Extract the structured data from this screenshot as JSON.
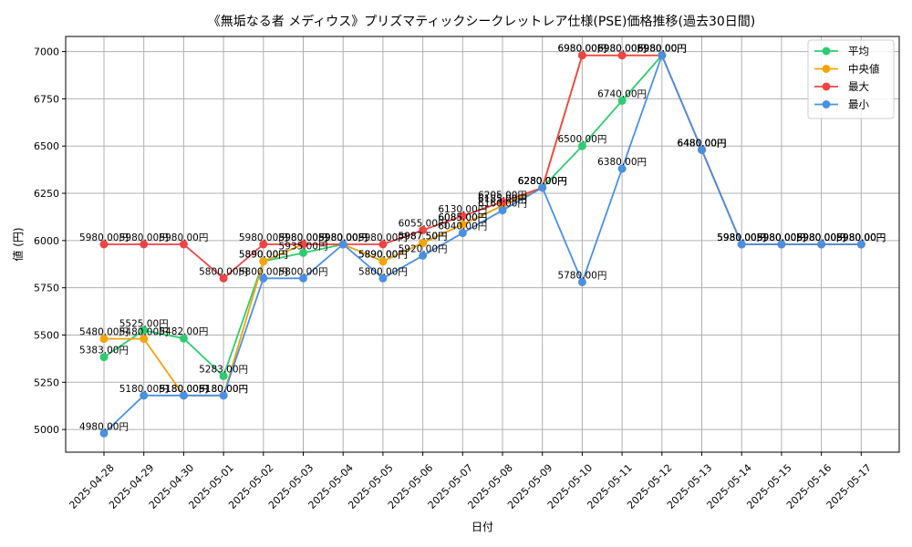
{
  "chart_data": {
    "type": "line",
    "title": "《無垢なる者 メディウス》プリズマティックシークレットレア仕様(PSE)価格推移(過去30日間)",
    "xlabel": "日付",
    "ylabel": "値 (円)",
    "ylim": [
      4880,
      7080
    ],
    "yticks": [
      5000,
      5250,
      5500,
      5750,
      6000,
      6250,
      6500,
      6750,
      7000
    ],
    "grid": true,
    "legend_position": "top-right",
    "categories": [
      "2025-04-28",
      "2025-04-29",
      "2025-04-30",
      "2025-05-01",
      "2025-05-02",
      "2025-05-03",
      "2025-05-04",
      "2025-05-05",
      "2025-05-06",
      "2025-05-07",
      "2025-05-08",
      "2025-05-09",
      "2025-05-10",
      "2025-05-11",
      "2025-05-12",
      "2025-05-13",
      "2025-05-14",
      "2025-05-15",
      "2025-05-16",
      "2025-05-17"
    ],
    "series": [
      {
        "name": "平均",
        "color": "#2ecc71",
        "values": [
          5383,
          5525,
          5482,
          5283,
          5890,
          5935,
          5980,
          5890,
          5987.5,
          6085,
          6185,
          6280,
          6500,
          6740,
          6980,
          6480,
          5980,
          5980,
          5980,
          5980
        ],
        "labels": [
          "5383.00円",
          "5525.00円",
          "5482.00円",
          "5283.00円",
          "5890.00円",
          "5935.00円",
          "5980.00円",
          "5890.00円",
          "5987.50円",
          "6085.00円",
          "6185.00円",
          "6280.00円",
          "6500.00円",
          "6740.00円",
          "6980.00円",
          "6480.00円",
          "5980.00円",
          "5980.00円",
          "5980.00円",
          "5980.00円"
        ]
      },
      {
        "name": "中央値",
        "color": "#f5a30a",
        "values": [
          5480,
          5480,
          5180,
          5180,
          5890,
          5980,
          5980,
          5890,
          5987.5,
          6085,
          6185,
          6280,
          6980,
          6980,
          6980,
          6480,
          5980,
          5980,
          5980,
          5980
        ],
        "labels": [
          "5480.00円",
          "5480.00円",
          "5180.00円",
          "5180.00円",
          "5890.00円",
          "5980.00円",
          "5980.00円",
          "5890.00円",
          "5987.50円",
          "6085.00円",
          "6185.00円",
          "6280.00円",
          "6980.00円",
          "6980.00円",
          "6980.00円",
          "6480.00円",
          "5980.00円",
          "5980.00円",
          "5980.00円",
          "5980.00円"
        ]
      },
      {
        "name": "最大",
        "color": "#ef4444",
        "values": [
          5980,
          5980,
          5980,
          5800,
          5980,
          5980,
          5980,
          5980,
          6055,
          6130,
          6205,
          6280,
          6980,
          6980,
          6980,
          6480,
          5980,
          5980,
          5980,
          5980
        ],
        "labels": [
          "5980.00円",
          "5980.00円",
          "5980.00円",
          "5800.00円",
          "5980.00円",
          "5980.00円",
          "5980.00円",
          "5980.00円",
          "6055.00円",
          "6130.00円",
          "6205.00円",
          "6280.00円",
          "6980.00円",
          "6980.00円",
          "6980.00円",
          "6480.00円",
          "5980.00円",
          "5980.00円",
          "5980.00円",
          "5980.00円"
        ]
      },
      {
        "name": "最小",
        "color": "#4a90e2",
        "values": [
          4980,
          5180,
          5180,
          5180,
          5800,
          5800,
          5980,
          5800,
          5920,
          6040,
          6160,
          6280,
          5780,
          6380,
          6980,
          6480,
          5980,
          5980,
          5980,
          5980
        ],
        "labels": [
          "4980.00円",
          "5180.00円",
          "5180.00円",
          "5180.00円",
          "5800.00円",
          "5800.00円",
          "5980.00円",
          "5800.00円",
          "5920.00円",
          "6040.00円",
          "6160.00円",
          "6280.00円",
          "5780.00円",
          "6380.00円",
          "6980.00円",
          "6480.00円",
          "5980.00円",
          "5980.00円",
          "5980.00円",
          "5980.00円"
        ]
      }
    ]
  }
}
